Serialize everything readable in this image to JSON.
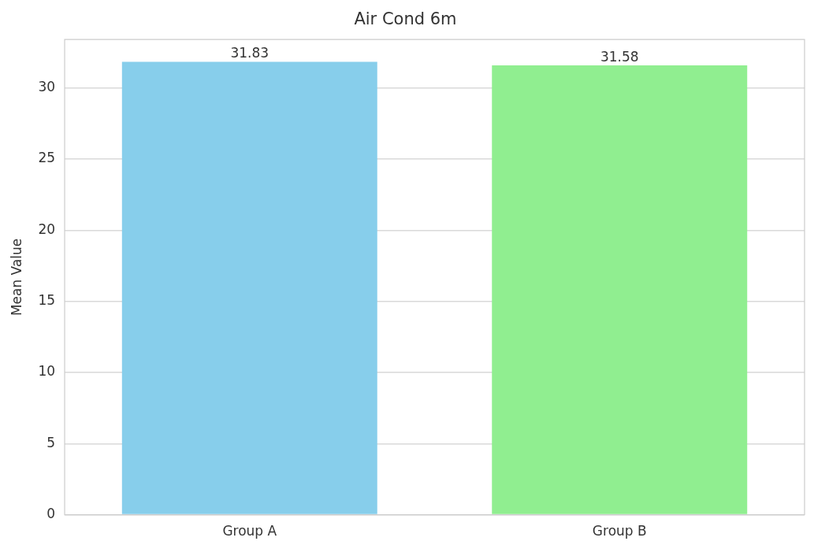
{
  "chart_data": {
    "type": "bar",
    "title": "Air Cond 6m",
    "ylabel": "Mean Value",
    "categories": [
      "Group A",
      "Group B"
    ],
    "values": [
      31.83,
      31.58
    ],
    "colors": [
      "#87ceeb",
      "#90ee90"
    ],
    "ylim": [
      0,
      33.4
    ],
    "yticks": [
      0,
      5,
      10,
      15,
      20,
      25,
      30
    ],
    "grid": "y",
    "data_labels": true
  }
}
